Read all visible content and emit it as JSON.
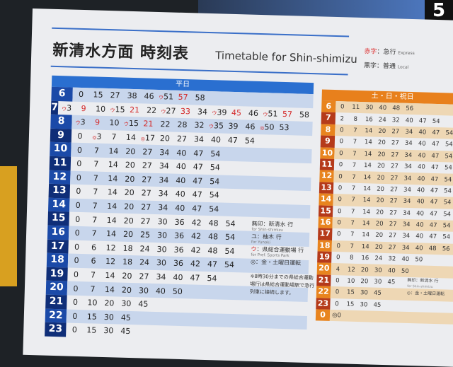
{
  "title": "新清水方面 時刻表",
  "title_en": "Timetable for Shin-shimizu",
  "key": [
    {
      "label": "赤字",
      "sep": "：急行",
      "en": "Express",
      "color": "#d42a2a"
    },
    {
      "label": "黒字",
      "sep": "：普通",
      "en": "Local",
      "color": "#222222"
    }
  ],
  "weekday": {
    "header": "平日",
    "rows": [
      {
        "hour": "6",
        "times": [
          {
            "t": "0"
          },
          {
            "t": "15"
          },
          {
            "t": "27"
          },
          {
            "t": "38"
          },
          {
            "t": "46"
          },
          {
            "t": "51",
            "m": "ウ"
          },
          {
            "t": "57",
            "ex": true
          },
          {
            "t": "58"
          }
        ]
      },
      {
        "hour": "7",
        "times": [
          {
            "t": "3",
            "m": "ウ"
          },
          {
            "t": "9",
            "ex": true
          },
          {
            "t": "10"
          },
          {
            "t": "15",
            "m": "ウ"
          },
          {
            "t": "21",
            "ex": true
          },
          {
            "t": "22"
          },
          {
            "t": "27",
            "m": "ウ"
          },
          {
            "t": "33",
            "ex": true
          },
          {
            "t": "34"
          },
          {
            "t": "39",
            "m": "ウ"
          },
          {
            "t": "45",
            "ex": true
          },
          {
            "t": "46"
          },
          {
            "t": "51",
            "m": "ウ"
          },
          {
            "t": "57",
            "ex": true
          },
          {
            "t": "58"
          }
        ]
      },
      {
        "hour": "8",
        "times": [
          {
            "t": "3",
            "m": "ウ"
          },
          {
            "t": "9",
            "ex": true
          },
          {
            "t": "10"
          },
          {
            "t": "15",
            "m": "ウ"
          },
          {
            "t": "21",
            "ex": true
          },
          {
            "t": "22"
          },
          {
            "t": "28"
          },
          {
            "t": "32"
          },
          {
            "t": "35",
            "m": "ウ"
          },
          {
            "t": "39"
          },
          {
            "t": "46"
          },
          {
            "t": "50",
            "m": "◎"
          },
          {
            "t": "53"
          }
        ]
      },
      {
        "hour": "9",
        "times": [
          {
            "t": "0"
          },
          {
            "t": "3",
            "m": "◎"
          },
          {
            "t": "7"
          },
          {
            "t": "14"
          },
          {
            "t": "17",
            "m": "◎"
          },
          {
            "t": "20"
          },
          {
            "t": "27"
          },
          {
            "t": "34"
          },
          {
            "t": "40"
          },
          {
            "t": "47"
          },
          {
            "t": "54"
          }
        ]
      },
      {
        "hour": "10",
        "times": [
          {
            "t": "0"
          },
          {
            "t": "7"
          },
          {
            "t": "14"
          },
          {
            "t": "20"
          },
          {
            "t": "27"
          },
          {
            "t": "34"
          },
          {
            "t": "40"
          },
          {
            "t": "47"
          },
          {
            "t": "54"
          }
        ]
      },
      {
        "hour": "11",
        "times": [
          {
            "t": "0"
          },
          {
            "t": "7"
          },
          {
            "t": "14"
          },
          {
            "t": "20"
          },
          {
            "t": "27"
          },
          {
            "t": "34"
          },
          {
            "t": "40"
          },
          {
            "t": "47"
          },
          {
            "t": "54"
          }
        ]
      },
      {
        "hour": "12",
        "times": [
          {
            "t": "0"
          },
          {
            "t": "7"
          },
          {
            "t": "14"
          },
          {
            "t": "20"
          },
          {
            "t": "27"
          },
          {
            "t": "34"
          },
          {
            "t": "40"
          },
          {
            "t": "47"
          },
          {
            "t": "54"
          }
        ]
      },
      {
        "hour": "13",
        "times": [
          {
            "t": "0"
          },
          {
            "t": "7"
          },
          {
            "t": "14"
          },
          {
            "t": "20"
          },
          {
            "t": "27"
          },
          {
            "t": "34"
          },
          {
            "t": "40"
          },
          {
            "t": "47"
          },
          {
            "t": "54"
          }
        ]
      },
      {
        "hour": "14",
        "times": [
          {
            "t": "0"
          },
          {
            "t": "7"
          },
          {
            "t": "14"
          },
          {
            "t": "20"
          },
          {
            "t": "27"
          },
          {
            "t": "34"
          },
          {
            "t": "40"
          },
          {
            "t": "47"
          },
          {
            "t": "54"
          }
        ]
      },
      {
        "hour": "15",
        "times": [
          {
            "t": "0"
          },
          {
            "t": "7"
          },
          {
            "t": "14"
          },
          {
            "t": "20"
          },
          {
            "t": "27"
          },
          {
            "t": "30"
          },
          {
            "t": "36"
          },
          {
            "t": "42"
          },
          {
            "t": "48"
          },
          {
            "t": "54"
          }
        ]
      },
      {
        "hour": "16",
        "times": [
          {
            "t": "0"
          },
          {
            "t": "7"
          },
          {
            "t": "14"
          },
          {
            "t": "20"
          },
          {
            "t": "25"
          },
          {
            "t": "30"
          },
          {
            "t": "36"
          },
          {
            "t": "42"
          },
          {
            "t": "48"
          },
          {
            "t": "54"
          }
        ]
      },
      {
        "hour": "17",
        "times": [
          {
            "t": "0"
          },
          {
            "t": "6"
          },
          {
            "t": "12"
          },
          {
            "t": "18"
          },
          {
            "t": "24"
          },
          {
            "t": "30"
          },
          {
            "t": "36"
          },
          {
            "t": "42"
          },
          {
            "t": "48"
          },
          {
            "t": "54"
          }
        ]
      },
      {
        "hour": "18",
        "times": [
          {
            "t": "0"
          },
          {
            "t": "6"
          },
          {
            "t": "12"
          },
          {
            "t": "18"
          },
          {
            "t": "24"
          },
          {
            "t": "30"
          },
          {
            "t": "36"
          },
          {
            "t": "42"
          },
          {
            "t": "47"
          },
          {
            "t": "54"
          }
        ]
      },
      {
        "hour": "19",
        "times": [
          {
            "t": "0"
          },
          {
            "t": "7"
          },
          {
            "t": "14"
          },
          {
            "t": "20"
          },
          {
            "t": "27"
          },
          {
            "t": "34"
          },
          {
            "t": "40"
          },
          {
            "t": "47"
          },
          {
            "t": "54"
          }
        ]
      },
      {
        "hour": "20",
        "times": [
          {
            "t": "0"
          },
          {
            "t": "7"
          },
          {
            "t": "14"
          },
          {
            "t": "20"
          },
          {
            "t": "30"
          },
          {
            "t": "40"
          },
          {
            "t": "50"
          }
        ]
      },
      {
        "hour": "21",
        "times": [
          {
            "t": "0"
          },
          {
            "t": "10"
          },
          {
            "t": "20"
          },
          {
            "t": "30"
          },
          {
            "t": "45"
          }
        ]
      },
      {
        "hour": "22",
        "times": [
          {
            "t": "0"
          },
          {
            "t": "15"
          },
          {
            "t": "30"
          },
          {
            "t": "45"
          }
        ]
      },
      {
        "hour": "23",
        "times": [
          {
            "t": "0"
          },
          {
            "t": "15"
          },
          {
            "t": "30"
          },
          {
            "t": "45"
          }
        ]
      }
    ]
  },
  "weekend": {
    "header": "土・日・祝日",
    "rows": [
      {
        "hour": "6",
        "times": [
          "0",
          "11",
          "30",
          "40",
          "48",
          "56"
        ]
      },
      {
        "hour": "7",
        "times": [
          "2",
          "8",
          "16",
          "24",
          "32",
          "40",
          "47",
          "54"
        ]
      },
      {
        "hour": "8",
        "times": [
          "0",
          "7",
          "14",
          "20",
          "27",
          "34",
          "40",
          "47",
          "54"
        ]
      },
      {
        "hour": "9",
        "times": [
          "0",
          "7",
          "14",
          "20",
          "27",
          "34",
          "40",
          "47",
          "54"
        ]
      },
      {
        "hour": "10",
        "times": [
          "0",
          "7",
          "14",
          "20",
          "27",
          "34",
          "40",
          "47",
          "54"
        ]
      },
      {
        "hour": "11",
        "times": [
          "0",
          "7",
          "14",
          "20",
          "27",
          "34",
          "40",
          "47",
          "54"
        ]
      },
      {
        "hour": "12",
        "times": [
          "0",
          "7",
          "14",
          "20",
          "27",
          "34",
          "40",
          "47",
          "54"
        ]
      },
      {
        "hour": "13",
        "times": [
          "0",
          "7",
          "14",
          "20",
          "27",
          "34",
          "40",
          "47",
          "54"
        ]
      },
      {
        "hour": "14",
        "times": [
          "0",
          "7",
          "14",
          "20",
          "27",
          "34",
          "40",
          "47",
          "54"
        ]
      },
      {
        "hour": "15",
        "times": [
          "0",
          "7",
          "14",
          "20",
          "27",
          "34",
          "40",
          "47",
          "54"
        ]
      },
      {
        "hour": "16",
        "times": [
          "0",
          "7",
          "14",
          "20",
          "27",
          "34",
          "40",
          "47",
          "54"
        ]
      },
      {
        "hour": "17",
        "times": [
          "0",
          "7",
          "14",
          "20",
          "27",
          "34",
          "40",
          "47",
          "54"
        ]
      },
      {
        "hour": "18",
        "times": [
          "0",
          "7",
          "14",
          "20",
          "27",
          "34",
          "40",
          "48",
          "56"
        ]
      },
      {
        "hour": "19",
        "times": [
          "0",
          "8",
          "16",
          "24",
          "32",
          "40",
          "50"
        ]
      },
      {
        "hour": "20",
        "times": [
          "4",
          "12",
          "20",
          "30",
          "40",
          "50"
        ]
      },
      {
        "hour": "21",
        "times": [
          "0",
          "10",
          "20",
          "30",
          "45"
        ]
      },
      {
        "hour": "22",
        "times": [
          "0",
          "15",
          "30",
          "45"
        ]
      },
      {
        "hour": "23",
        "times": [
          "0",
          "15",
          "30",
          "45"
        ]
      },
      {
        "hour": "0",
        "times": [
          "◎0"
        ]
      }
    ],
    "legend": [
      "無印：新清水 行",
      "for Shin-shimizu",
      "◎：金・土曜日運転"
    ]
  },
  "legend": [
    {
      "mark": "無印",
      "text": "：新清水 行",
      "en": "for Shin-shimizu"
    },
    {
      "mark": "ユ",
      "text": "：柚木 行",
      "en": "for Yunoki"
    },
    {
      "mark": "ウ",
      "text": "：県総合運動場 行",
      "en": "for Pref. Sports Park",
      "color": "#d42a2a"
    },
    {
      "mark": "◎",
      "text": "：金・土曜日運転",
      "en": ""
    }
  ],
  "note": "※8時30分までの県総合運動場行は県総合運動場駅で急行列車に接続します。",
  "corner_sign": "5"
}
